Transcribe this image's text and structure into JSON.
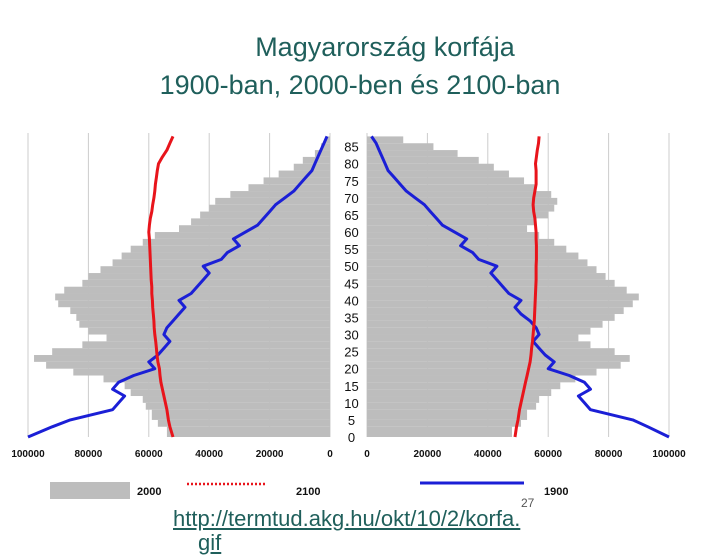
{
  "slide": {
    "title_line1": "Magyarország korfája",
    "title_line2": "1900-ban, 2000-ben és 2100-ban",
    "url_line1": "http://termtud.akg.hu/okt/10/2/korfa.",
    "url_line2": "gif",
    "slide_number": "27"
  },
  "chart_data": {
    "type": "population-pyramid",
    "title": "Magyarország korfája 1900-ban, 2000-ben és 2100-ban",
    "age_ticks": [
      "0",
      "5",
      "10",
      "15",
      "20",
      "25",
      "30",
      "35",
      "40",
      "45",
      "50",
      "55",
      "60",
      "65",
      "70",
      "75",
      "80",
      "85"
    ],
    "x_ticks_left": [
      "100000",
      "80000",
      "60000",
      "40000",
      "20000",
      "0"
    ],
    "x_ticks_right": [
      "0",
      "20000",
      "40000",
      "60000",
      "80000",
      "100000"
    ],
    "xlim": [
      0,
      100000
    ],
    "ylim": [
      0,
      89
    ],
    "legend": [
      {
        "name": "2000",
        "style": "gray-bars"
      },
      {
        "name": "2100",
        "style": "red-line"
      },
      {
        "name": "1900",
        "style": "blue-line"
      }
    ],
    "ages": [
      0,
      3,
      5,
      8,
      10,
      12,
      14,
      16,
      18,
      20,
      22,
      24,
      26,
      28,
      30,
      32,
      34,
      36,
      38,
      40,
      42,
      44,
      46,
      48,
      50,
      52,
      54,
      56,
      58,
      60,
      62,
      64,
      66,
      68,
      70,
      72,
      74,
      76,
      78,
      80,
      82,
      84,
      86,
      88
    ],
    "series": [
      {
        "name": "2000",
        "side": "left",
        "values": [
          54000,
          57000,
          59000,
          61000,
          62000,
          66000,
          68000,
          75000,
          85000,
          94000,
          98000,
          92000,
          82000,
          74000,
          80000,
          83000,
          84000,
          86000,
          90000,
          91000,
          88000,
          82000,
          80000,
          76000,
          72000,
          69000,
          66000,
          62000,
          58000,
          50000,
          46000,
          43000,
          40000,
          38000,
          33000,
          27000,
          22000,
          17000,
          12000,
          9000,
          5000,
          3000,
          1500,
          500
        ]
      },
      {
        "name": "2000",
        "side": "right",
        "values": [
          48000,
          51000,
          53000,
          56000,
          57000,
          61000,
          64000,
          69000,
          76000,
          84000,
          87000,
          82000,
          74000,
          70000,
          74000,
          78000,
          82000,
          85000,
          88000,
          90000,
          86000,
          82000,
          79000,
          76000,
          73000,
          70000,
          66000,
          62000,
          57000,
          53000,
          56000,
          60000,
          62000,
          63000,
          61000,
          56000,
          52000,
          47000,
          42000,
          37000,
          30000,
          22000,
          12000,
          4000
        ]
      },
      {
        "name": "2100",
        "side": "left",
        "values": [
          52000,
          53000,
          53500,
          54000,
          54500,
          55000,
          55500,
          56000,
          56300,
          56500,
          57000,
          57300,
          57500,
          57700,
          58000,
          58200,
          58300,
          58500,
          58700,
          58800,
          59000,
          59000,
          59200,
          59300,
          59400,
          59500,
          59600,
          59700,
          59800,
          60000,
          59800,
          59500,
          59000,
          58700,
          58300,
          58000,
          57800,
          57500,
          57200,
          56800,
          55500,
          54000,
          53000,
          52000
        ]
      },
      {
        "name": "2100",
        "side": "right",
        "values": [
          49000,
          49500,
          50000,
          50500,
          51000,
          51500,
          52000,
          52500,
          53000,
          53500,
          54000,
          54300,
          54500,
          54800,
          55000,
          55200,
          55400,
          55500,
          55600,
          55700,
          55800,
          55900,
          56000,
          56000,
          56000,
          56100,
          56100,
          56100,
          56000,
          56000,
          55800,
          55600,
          55200,
          55000,
          55200,
          55600,
          56000,
          56000,
          56000,
          55800,
          56100,
          56400,
          56800,
          57000
        ]
      },
      {
        "name": "1900",
        "side": "left",
        "values": [
          100000,
          92000,
          86000,
          72000,
          70000,
          68000,
          72000,
          70000,
          65000,
          58000,
          60000,
          57000,
          55000,
          53000,
          55000,
          54000,
          52000,
          50000,
          48000,
          50000,
          46000,
          44000,
          42000,
          40000,
          42000,
          36000,
          34000,
          30000,
          32000,
          28000,
          24000,
          22000,
          20000,
          18000,
          15000,
          12000,
          10000,
          8000,
          6000,
          5000,
          4000,
          3000,
          2000,
          1000
        ]
      },
      {
        "name": "1900",
        "side": "right",
        "values": [
          100000,
          93000,
          88000,
          74000,
          72000,
          70000,
          74000,
          72000,
          67000,
          60000,
          62000,
          59000,
          57000,
          55000,
          57000,
          56000,
          54000,
          51000,
          49000,
          51000,
          47000,
          45000,
          43000,
          41000,
          43000,
          37000,
          35000,
          31000,
          33000,
          29000,
          25000,
          23000,
          21000,
          19000,
          16000,
          13000,
          11000,
          9000,
          7000,
          6000,
          5000,
          4000,
          3000,
          1500
        ]
      }
    ],
    "colors": {
      "gray": "#bdbdbd",
      "red": "#e8141b",
      "blue": "#1b1fd6",
      "grid": "#cccccc"
    }
  }
}
